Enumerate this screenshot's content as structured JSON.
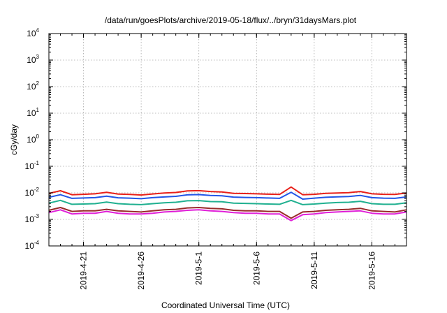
{
  "chart_data": {
    "type": "line",
    "title": "/data/run/goesPlots/archive/2019-05-18/flux/../bryn/31daysMars.plot",
    "xlabel": "Coordinated Universal Time (UTC)",
    "ylabel": "cGy/day",
    "y_scale": "log",
    "ylim": [
      0.0001,
      10000
    ],
    "y_ticks": [
      {
        "base": "10",
        "exp": "-4",
        "value": 0.0001
      },
      {
        "base": "10",
        "exp": "-3",
        "value": 0.001
      },
      {
        "base": "10",
        "exp": "-2",
        "value": 0.01
      },
      {
        "base": "10",
        "exp": "-1",
        "value": 0.1
      },
      {
        "base": "10",
        "exp": "0",
        "value": 1
      },
      {
        "base": "10",
        "exp": "1",
        "value": 10
      },
      {
        "base": "10",
        "exp": "2",
        "value": 100
      },
      {
        "base": "10",
        "exp": "3",
        "value": 1000
      },
      {
        "base": "10",
        "exp": "4",
        "value": 10000
      }
    ],
    "xlim": [
      "2019-04-18",
      "2019-05-19"
    ],
    "x_ticks": [
      "2019-4-21",
      "2019-4-26",
      "2019-5-1",
      "2019-5-6",
      "2019-5-11",
      "2019-5-16"
    ],
    "x_tick_dates": [
      "2019-04-21",
      "2019-04-26",
      "2019-05-01",
      "2019-05-06",
      "2019-05-11",
      "2019-05-16"
    ],
    "grid": true,
    "x": [
      "2019-04-18",
      "2019-04-19",
      "2019-04-20",
      "2019-04-21",
      "2019-04-22",
      "2019-04-23",
      "2019-04-24",
      "2019-04-25",
      "2019-04-26",
      "2019-04-27",
      "2019-04-28",
      "2019-04-29",
      "2019-04-30",
      "2019-05-01",
      "2019-05-02",
      "2019-05-03",
      "2019-05-04",
      "2019-05-05",
      "2019-05-06",
      "2019-05-07",
      "2019-05-08",
      "2019-05-09",
      "2019-05-10",
      "2019-05-11",
      "2019-05-12",
      "2019-05-13",
      "2019-05-14",
      "2019-05-15",
      "2019-05-16",
      "2019-05-17",
      "2019-05-18",
      "2019-05-19"
    ],
    "series": [
      {
        "color": "#e8201a",
        "values": [
          0.0095,
          0.012,
          0.0085,
          0.0088,
          0.0092,
          0.0105,
          0.009,
          0.0087,
          0.0083,
          0.0091,
          0.0098,
          0.0103,
          0.0118,
          0.0121,
          0.0112,
          0.0108,
          0.0096,
          0.0094,
          0.0092,
          0.0089,
          0.0087,
          0.0165,
          0.0085,
          0.0088,
          0.0095,
          0.0099,
          0.0102,
          0.0112,
          0.0092,
          0.0088,
          0.0087,
          0.0098
        ]
      },
      {
        "color": "#2255e8",
        "values": [
          0.0068,
          0.0085,
          0.0062,
          0.0064,
          0.0066,
          0.0075,
          0.0065,
          0.0063,
          0.006,
          0.0066,
          0.007,
          0.0074,
          0.0084,
          0.0086,
          0.008,
          0.0077,
          0.0069,
          0.0067,
          0.0066,
          0.0064,
          0.0062,
          0.0105,
          0.0058,
          0.0063,
          0.0068,
          0.0071,
          0.0073,
          0.008,
          0.0066,
          0.0063,
          0.0062,
          0.007
        ]
      },
      {
        "color": "#20b090",
        "values": [
          0.0041,
          0.0052,
          0.0037,
          0.0038,
          0.0039,
          0.0045,
          0.0039,
          0.0037,
          0.0036,
          0.0039,
          0.0042,
          0.0044,
          0.005,
          0.0051,
          0.0047,
          0.0046,
          0.0041,
          0.004,
          0.0039,
          0.0038,
          0.0037,
          0.0052,
          0.0036,
          0.0038,
          0.0041,
          0.0043,
          0.0044,
          0.0048,
          0.0039,
          0.0037,
          0.0037,
          0.0042
        ]
      },
      {
        "color": "#9a2a2a",
        "values": [
          0.0022,
          0.0028,
          0.002,
          0.0021,
          0.0021,
          0.0024,
          0.0021,
          0.002,
          0.0019,
          0.0021,
          0.0023,
          0.0024,
          0.0027,
          0.0028,
          0.0026,
          0.0025,
          0.0022,
          0.0021,
          0.0021,
          0.002,
          0.002,
          0.0011,
          0.0019,
          0.002,
          0.0022,
          0.0023,
          0.0024,
          0.0026,
          0.0021,
          0.002,
          0.0019,
          0.0023
        ]
      },
      {
        "color": "#e020d8",
        "values": [
          0.0018,
          0.0023,
          0.0016,
          0.0017,
          0.0017,
          0.002,
          0.0017,
          0.0016,
          0.0016,
          0.0017,
          0.0019,
          0.002,
          0.0022,
          0.0023,
          0.0021,
          0.002,
          0.0018,
          0.0017,
          0.0017,
          0.0016,
          0.0016,
          0.0009,
          0.0015,
          0.0016,
          0.0018,
          0.0019,
          0.002,
          0.0021,
          0.0017,
          0.0016,
          0.0016,
          0.0019
        ]
      }
    ]
  }
}
